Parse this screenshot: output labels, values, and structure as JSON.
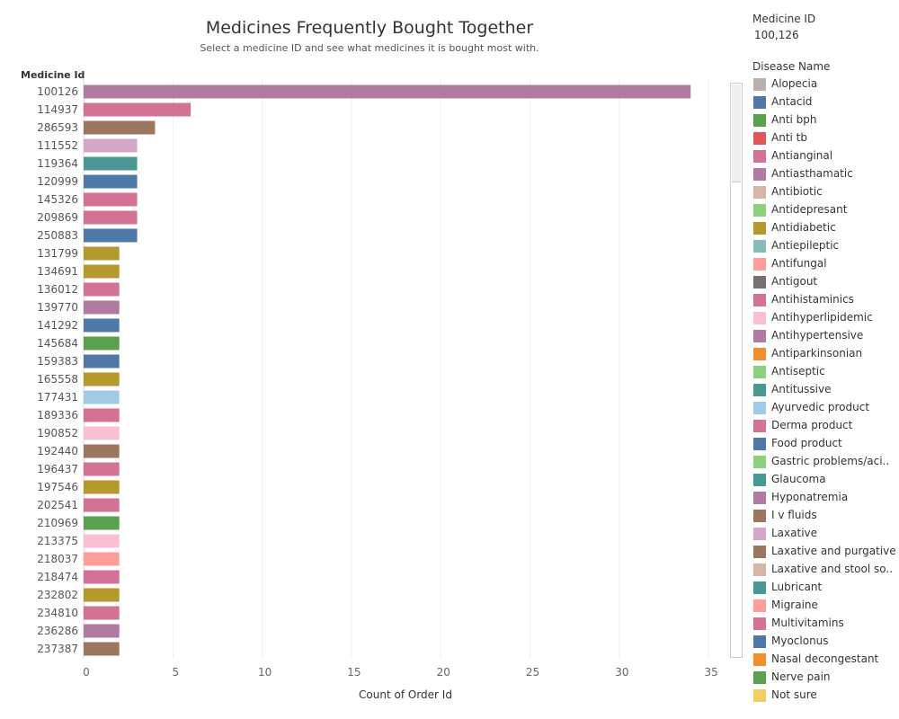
{
  "dashboard": {
    "title": "Medicines Frequently Bought Together",
    "subtitle": "Select a medicine ID and see what medicines it is bought most with.",
    "row_header": "Medicine Id"
  },
  "filter": {
    "title": "Medicine ID",
    "value": "100,126"
  },
  "legend": {
    "title": "Disease Name",
    "items": [
      {
        "label": "Alopecia",
        "color": "#bab0ac"
      },
      {
        "label": "Antacid",
        "color": "#4e79a7"
      },
      {
        "label": "Anti bph",
        "color": "#59a14f"
      },
      {
        "label": "Anti tb",
        "color": "#e15759"
      },
      {
        "label": "Antianginal",
        "color": "#d37295"
      },
      {
        "label": "Antiasthamatic",
        "color": "#b07aa1"
      },
      {
        "label": "Antibiotic",
        "color": "#d7b5a6"
      },
      {
        "label": "Antidepresant",
        "color": "#8cd17d"
      },
      {
        "label": "Antidiabetic",
        "color": "#b6992d"
      },
      {
        "label": "Antiepileptic",
        "color": "#86bcb6"
      },
      {
        "label": "Antifungal",
        "color": "#ff9d9a"
      },
      {
        "label": "Antigout",
        "color": "#79706e"
      },
      {
        "label": "Antihistaminics",
        "color": "#d37295"
      },
      {
        "label": "Antihyperlipidemic",
        "color": "#fabfd2"
      },
      {
        "label": "Antihypertensive",
        "color": "#b07aa1"
      },
      {
        "label": "Antiparkinsonian",
        "color": "#f28e2b"
      },
      {
        "label": "Antiseptic",
        "color": "#8cd17d"
      },
      {
        "label": "Antitussive",
        "color": "#499894"
      },
      {
        "label": "Ayurvedic product",
        "color": "#a0cbe8"
      },
      {
        "label": "Derma product",
        "color": "#d37295"
      },
      {
        "label": "Food product",
        "color": "#4e79a7"
      },
      {
        "label": "Gastric problems/aci..",
        "color": "#8cd17d"
      },
      {
        "label": "Glaucoma",
        "color": "#499894"
      },
      {
        "label": "Hyponatremia",
        "color": "#b07aa1"
      },
      {
        "label": "I v fluids",
        "color": "#9d7660"
      },
      {
        "label": "Laxative",
        "color": "#d4a6c8"
      },
      {
        "label": "Laxative and purgative",
        "color": "#9d7660"
      },
      {
        "label": "Laxative and stool so..",
        "color": "#d7b5a6"
      },
      {
        "label": "Lubricant",
        "color": "#499894"
      },
      {
        "label": "Migraine",
        "color": "#ff9d9a"
      },
      {
        "label": "Multivitamins",
        "color": "#d37295"
      },
      {
        "label": "Myoclonus",
        "color": "#4e79a7"
      },
      {
        "label": "Nasal decongestant",
        "color": "#f28e2b"
      },
      {
        "label": "Nerve pain",
        "color": "#59a14f"
      },
      {
        "label": "Not sure",
        "color": "#f1ce63"
      }
    ]
  },
  "chart_data": {
    "type": "bar",
    "orientation": "horizontal",
    "xlabel": "Count of Order Id",
    "ylabel": "Medicine Id",
    "xlim": [
      0,
      36
    ],
    "xticks": [
      0,
      5,
      10,
      15,
      20,
      25,
      30,
      35
    ],
    "grid": true,
    "categories": [
      "100126",
      "114937",
      "286593",
      "111552",
      "119364",
      "120999",
      "145326",
      "209869",
      "250883",
      "131799",
      "134691",
      "136012",
      "139770",
      "141292",
      "145684",
      "159383",
      "165558",
      "177431",
      "189336",
      "190852",
      "192440",
      "196437",
      "197546",
      "202541",
      "210969",
      "213375",
      "218037",
      "218474",
      "232802",
      "234810",
      "236286",
      "237387"
    ],
    "values": [
      34,
      6,
      4,
      3,
      3,
      3,
      3,
      3,
      3,
      2,
      2,
      2,
      2,
      2,
      2,
      2,
      2,
      2,
      2,
      2,
      2,
      2,
      2,
      2,
      2,
      2,
      2,
      2,
      2,
      2,
      2,
      2
    ],
    "colors": [
      "#b07aa1",
      "#d37295",
      "#9d7660",
      "#d4a6c8",
      "#499894",
      "#4e79a7",
      "#d37295",
      "#d37295",
      "#4e79a7",
      "#b6992d",
      "#b6992d",
      "#d37295",
      "#b07aa1",
      "#4e79a7",
      "#59a14f",
      "#4e79a7",
      "#b6992d",
      "#a0cbe8",
      "#d37295",
      "#fabfd2",
      "#9d7660",
      "#d37295",
      "#b6992d",
      "#d37295",
      "#59a14f",
      "#fabfd2",
      "#ff9d9a",
      "#d37295",
      "#b6992d",
      "#d37295",
      "#b07aa1",
      "#9d7660"
    ]
  }
}
